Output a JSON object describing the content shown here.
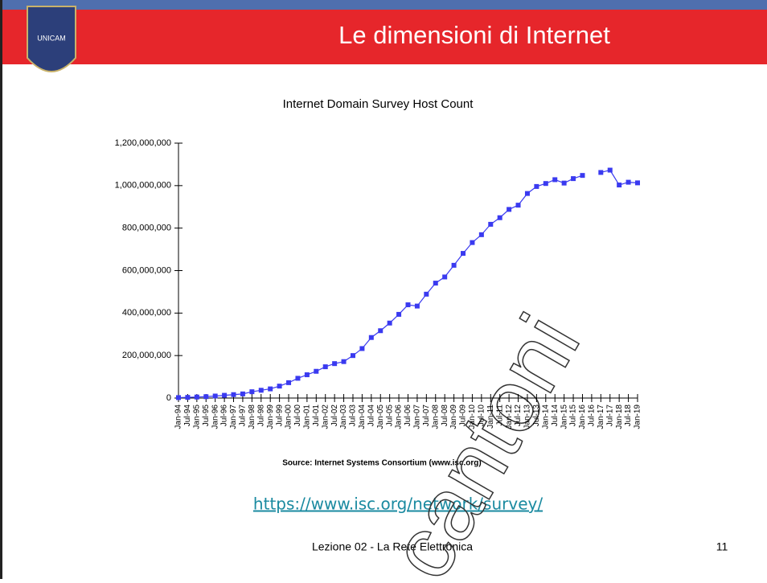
{
  "slide": {
    "title": "Le dimensioni di Internet",
    "logo": "UNICAM",
    "link": "https://www.isc.org/network/survey/",
    "footer": "Lezione 02 - La Rete Elettronica",
    "page": "11",
    "watermark": "cantoni"
  },
  "chart_data": {
    "type": "line",
    "title": "Internet Domain Survey Host Count",
    "source": "Source: Internet Systems Consortium (www.isc.org)",
    "categories": [
      "Jan-94",
      "Jul-94",
      "Jan-95",
      "Jul-95",
      "Jan-96",
      "Jul-96",
      "Jan-97",
      "Jul-97",
      "Jan-98",
      "Jul-98",
      "Jan-99",
      "Jul-99",
      "Jan-00",
      "Jul-00",
      "Jan-01",
      "Jul-01",
      "Jan-02",
      "Jul-02",
      "Jan-03",
      "Jul-03",
      "Jan-04",
      "Jul-04",
      "Jan-05",
      "Jul-05",
      "Jan-06",
      "Jul-06",
      "Jan-07",
      "Jul-07",
      "Jan-08",
      "Jul-08",
      "Jan-09",
      "Jul-09",
      "Jan-10",
      "Jul-10",
      "Jan-11",
      "Jul-11",
      "Jan-12",
      "Jul-12",
      "Jan-13",
      "Jul-13",
      "Jan-14",
      "Jul-14",
      "Jan-15",
      "Jul-15",
      "Jan-16",
      "Jul-16",
      "Jan-17",
      "Jul-17",
      "Jan-18",
      "Jul-18",
      "Jan-19"
    ],
    "series": [
      {
        "name": "Host Count",
        "color": "#3a3af0",
        "values": [
          2200000,
          3200000,
          4900000,
          6600000,
          9500000,
          12900000,
          16100000,
          19500000,
          29700000,
          36700000,
          43200000,
          56200000,
          72400000,
          93000000,
          109600000,
          125900000,
          147300000,
          162100000,
          171600000,
          200000000,
          233000000,
          285000000,
          317000000,
          353000000,
          394000000,
          439000000,
          433000000,
          489000000,
          541000000,
          570000000,
          625000000,
          681000000,
          732000000,
          769000000,
          818000000,
          849000000,
          888000000,
          908000000,
          963000000,
          996000000,
          1010000000,
          1028000000,
          1012000000,
          1033000000,
          1048000000,
          null,
          1062000000,
          1073000000,
          1003000000,
          1016000000,
          1013000000
        ]
      }
    ],
    "ylim": [
      0,
      1200000000
    ],
    "yticks": [
      0,
      {
        "value": 200000000,
        "label": "200,000,000"
      },
      {
        "value": 400000000,
        "label": "400,000,000"
      },
      {
        "value": 600000000,
        "label": "600,000,000"
      },
      {
        "value": 800000000,
        "label": "800,000,000"
      },
      {
        "value": 1000000000,
        "label": "1,000,000,000"
      },
      {
        "value": 1200000000,
        "label": "1,200,000,000"
      }
    ]
  }
}
